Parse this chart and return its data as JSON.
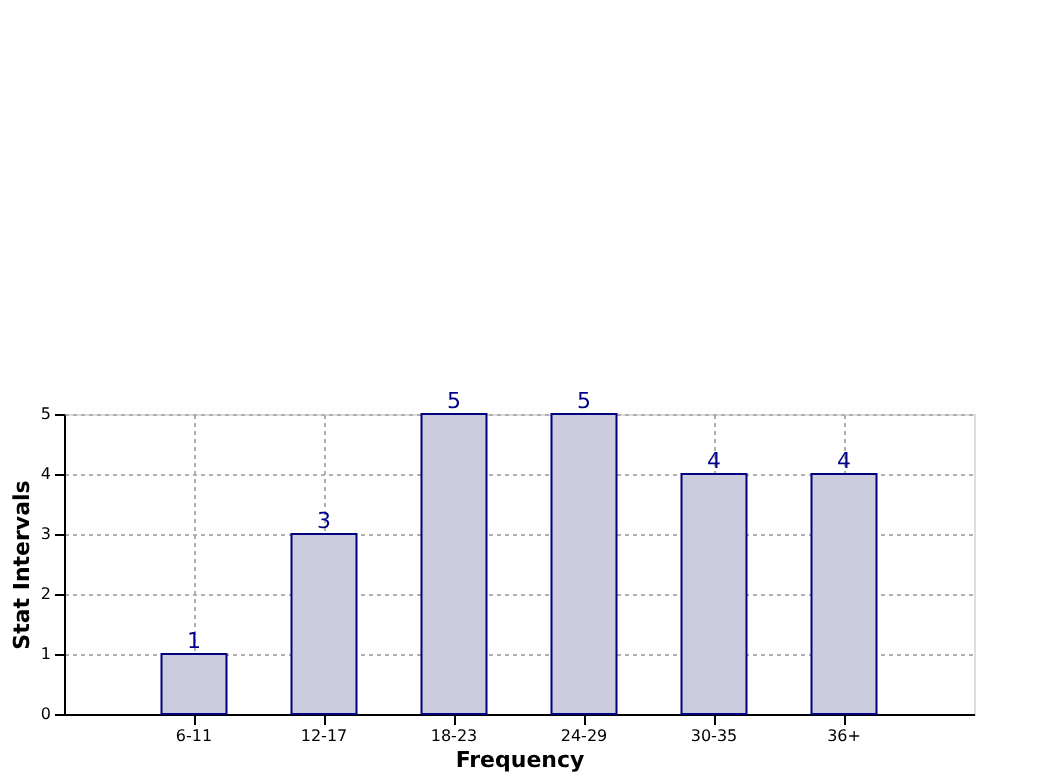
{
  "chart_data": {
    "type": "bar",
    "xlabel": "Frequency",
    "ylabel": "Stat Intervals",
    "categories": [
      "6-11",
      "12-17",
      "18-23",
      "24-29",
      "30-35",
      "36+"
    ],
    "values": [
      1,
      3,
      5,
      5,
      4,
      4
    ],
    "color": "#ccccdf",
    "ylim": [
      0,
      5
    ],
    "yticks": [
      0,
      1,
      2,
      3,
      4,
      5
    ],
    "grid": true,
    "data_labels": true
  }
}
